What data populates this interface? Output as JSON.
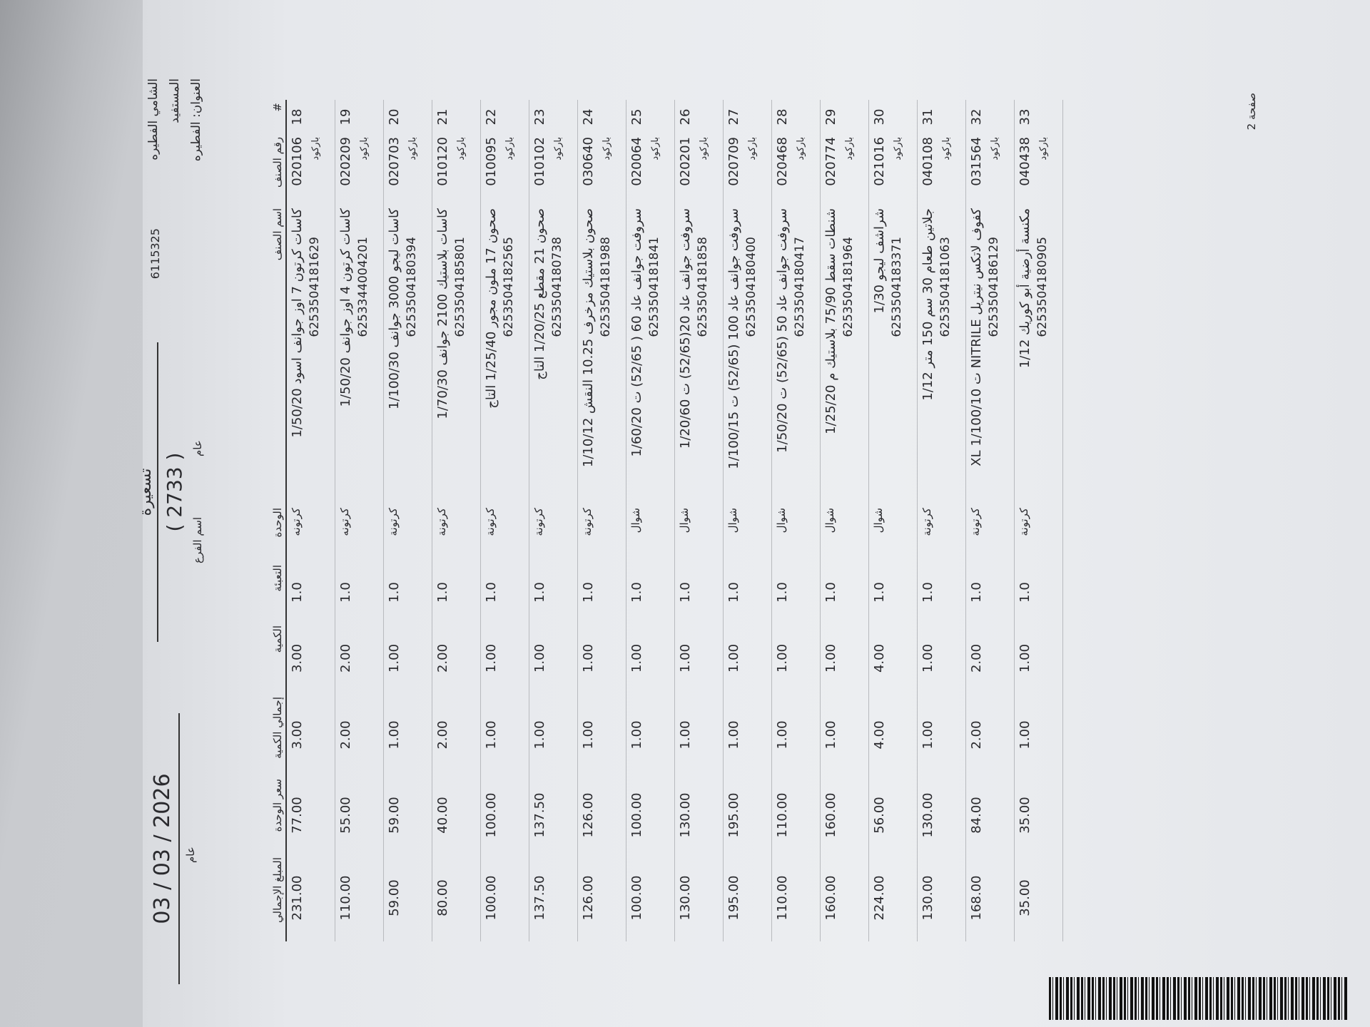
{
  "header": {
    "title": "تسعيرة",
    "doc_number": "( 2733 )",
    "type_label": "عام",
    "branch_label": "اسم الفرع",
    "date": "2026 / 03 / 03",
    "date_sub": "عام",
    "customer": "الشامي الفطيره",
    "beneficiary": "المستفيد",
    "address": "العنوان: الفطيره",
    "ref": "6115325"
  },
  "columns": [
    "#",
    "رقم الصنف",
    "اسم الصنف",
    "الوحدة",
    "التعبئة",
    "الكمية",
    "إجمالي الكمية",
    "سعر الوحدة",
    "المبلغ الإجمالي"
  ],
  "barcode_label": "باركود",
  "rows": [
    {
      "n": "18",
      "code": "020106",
      "name": "كاسات كرتون 7 اوز جوانف اسود 1/50/20",
      "barcode": "6253504181629",
      "unit": "كرتونه",
      "pack": "1.0",
      "qty": "3.00",
      "total_qty": "3.00",
      "price": "77.00",
      "amount": "231.00"
    },
    {
      "n": "19",
      "code": "020209",
      "name": "كاسات كرتون 4 اوز جوانف 1/50/20",
      "barcode": "6253344004201",
      "unit": "كرتونه",
      "pack": "1.0",
      "qty": "2.00",
      "total_qty": "2.00",
      "price": "55.00",
      "amount": "110.00"
    },
    {
      "n": "20",
      "code": "020703",
      "name": "كاسات ليجو 3000 جوانف 1/100/30",
      "barcode": "6253504180394",
      "unit": "كرتونة",
      "pack": "1.0",
      "qty": "1.00",
      "total_qty": "1.00",
      "price": "59.00",
      "amount": "59.00"
    },
    {
      "n": "21",
      "code": "010120",
      "name": "كاسات بلاستيك 2100 جوانف 1/70/30",
      "barcode": "6253504185801",
      "unit": "كرتونة",
      "pack": "1.0",
      "qty": "2.00",
      "total_qty": "2.00",
      "price": "40.00",
      "amount": "80.00"
    },
    {
      "n": "22",
      "code": "010095",
      "name": "صحون 17 ملون مجور 1/25/40 التاج",
      "barcode": "6253504182565",
      "unit": "كرتونة",
      "pack": "1.0",
      "qty": "1.00",
      "total_qty": "1.00",
      "price": "100.00",
      "amount": "100.00"
    },
    {
      "n": "23",
      "code": "010102",
      "name": "صحون 21 مقطع 1/20/25 التاج",
      "barcode": "6253504180738",
      "unit": "كرتونة",
      "pack": "1.0",
      "qty": "1.00",
      "total_qty": "1.00",
      "price": "137.50",
      "amount": "137.50"
    },
    {
      "n": "24",
      "code": "030640",
      "name": "صحون بلاستيك مزخرف 10.25 النقش 1/10/12",
      "barcode": "6253504181988",
      "unit": "كرتونة",
      "pack": "1.0",
      "qty": "1.00",
      "total_qty": "1.00",
      "price": "126.00",
      "amount": "126.00"
    },
    {
      "n": "25",
      "code": "020064",
      "name": "سروفت جوانف عاد 60 ( 52/65) ت 1/60/20",
      "barcode": "6253504181841",
      "unit": "شوال",
      "pack": "1.0",
      "qty": "1.00",
      "total_qty": "1.00",
      "price": "100.00",
      "amount": "100.00"
    },
    {
      "n": "26",
      "code": "020201",
      "name": "سروفت جوانف عاد 20(52/65) ت 1/20/60",
      "barcode": "6253504181858",
      "unit": "شوال",
      "pack": "1.0",
      "qty": "1.00",
      "total_qty": "1.00",
      "price": "130.00",
      "amount": "130.00"
    },
    {
      "n": "27",
      "code": "020709",
      "name": "سروفت جوانف عاد 100 (52/65) ت 1/100/15",
      "barcode": "6253504180400",
      "unit": "شوال",
      "pack": "1.0",
      "qty": "1.00",
      "total_qty": "1.00",
      "price": "195.00",
      "amount": "195.00"
    },
    {
      "n": "28",
      "code": "020468",
      "name": "سروفت جوانف عاد 50 (52/65) ت 1/50/20",
      "barcode": "6253504180417",
      "unit": "شوال",
      "pack": "1.0",
      "qty": "1.00",
      "total_qty": "1.00",
      "price": "110.00",
      "amount": "110.00"
    },
    {
      "n": "29",
      "code": "020774",
      "name": "شنطات سقط 75/90 بلاستيك م 1/25/20",
      "barcode": "6253504181964",
      "unit": "شوال",
      "pack": "1.0",
      "qty": "1.00",
      "total_qty": "1.00",
      "price": "160.00",
      "amount": "160.00"
    },
    {
      "n": "30",
      "code": "021016",
      "name": "شراشف ليجو 1/30",
      "barcode": "6253504183371",
      "unit": "شوال",
      "pack": "1.0",
      "qty": "4.00",
      "total_qty": "4.00",
      "price": "56.00",
      "amount": "224.00"
    },
    {
      "n": "31",
      "code": "040108",
      "name": "جلاتين طعام 30 سم 150 متر 1/12",
      "barcode": "6253504181063",
      "unit": "كرتونة",
      "pack": "1.0",
      "qty": "1.00",
      "total_qty": "1.00",
      "price": "130.00",
      "amount": "130.00"
    },
    {
      "n": "32",
      "code": "031564",
      "name": "كفوف لاتكس نيتريل NITRILE ت 1/100/10 XL",
      "barcode": "6253504186129",
      "unit": "كرتونة",
      "pack": "1.0",
      "qty": "2.00",
      "total_qty": "2.00",
      "price": "84.00",
      "amount": "168.00"
    },
    {
      "n": "33",
      "code": "040438",
      "name": "مكنسة أرضية أبو كوريك 1/12",
      "barcode": "6253504180905",
      "unit": "كرتونة",
      "pack": "1.0",
      "qty": "1.00",
      "total_qty": "1.00",
      "price": "35.00",
      "amount": "35.00"
    }
  ],
  "footer": {
    "page": "صفحة 2"
  }
}
